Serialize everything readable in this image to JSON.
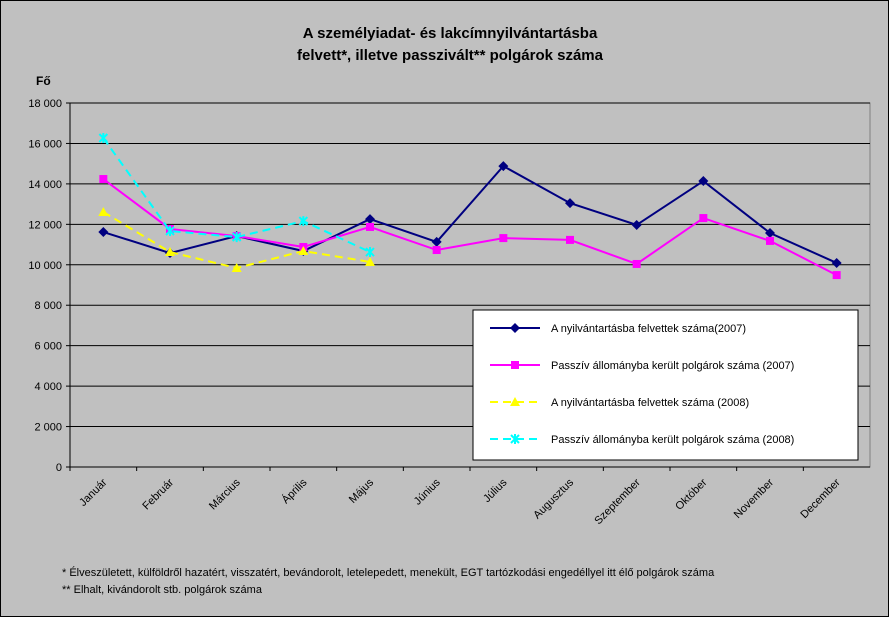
{
  "chart_data": {
    "type": "line",
    "title": [
      "A személyiadat- és lakcímnyilvántartásba",
      "felvett*, illetve passzivált** polgárok száma"
    ],
    "y_label": "Fő",
    "footnotes": [
      "* Élveszületett, külföldről hazatért, visszatért, bevándorolt, letelepedett, menekült, EGT tartózkodási engedéllyel itt élő  polgárok száma",
      "** Elhalt, kivándorolt stb. polgárok száma"
    ],
    "categories": [
      "Január",
      "Február",
      "Március",
      "Április",
      "Május",
      "Június",
      "Július",
      "Augusztus",
      "Szeptember",
      "Október",
      "November",
      "December"
    ],
    "series": [
      {
        "name": "A nyilvántartásba felvettek száma(2007)",
        "color": "#000080",
        "marker": "diamond",
        "dashed": false,
        "values": [
          11620,
          10580,
          11420,
          10680,
          12260,
          11130,
          14880,
          13050,
          11970,
          14140,
          11570,
          10090
        ]
      },
      {
        "name": "Passzív állományba került polgárok száma (2007)",
        "color": "#ff00ff",
        "marker": "square",
        "dashed": false,
        "values": [
          14240,
          11770,
          11420,
          10880,
          11870,
          10730,
          11320,
          11230,
          10040,
          12310,
          11180,
          9490
        ]
      },
      {
        "name": "A nyilvántartásba felvettek száma (2008)",
        "color": "#ffff00",
        "marker": "triangle",
        "dashed": true,
        "values": [
          12610,
          10630,
          9840,
          10680,
          10140,
          null,
          null,
          null,
          null,
          null,
          null,
          null
        ]
      },
      {
        "name": "Passzív állományba került polgárok száma (2008)",
        "color": "#00ffff",
        "marker": "cross",
        "dashed": true,
        "values": [
          16270,
          11670,
          11370,
          12160,
          10630,
          null,
          null,
          null,
          null,
          null,
          null,
          null
        ]
      }
    ],
    "ylim": [
      0,
      18000
    ],
    "yticks": [
      0,
      {
        "value": 2000,
        "label": "2 000"
      },
      {
        "value": 4000,
        "label": "4 000"
      },
      {
        "value": 6000,
        "label": "6 000"
      },
      {
        "value": 8000,
        "label": "8 000"
      },
      {
        "value": 10000,
        "label": "10 000"
      },
      {
        "value": 12000,
        "label": "12 000"
      },
      {
        "value": 14000,
        "label": "14 000"
      },
      {
        "value": 16000,
        "label": "16 000"
      },
      {
        "value": 18000,
        "label": "18 000"
      }
    ],
    "grid": true
  }
}
